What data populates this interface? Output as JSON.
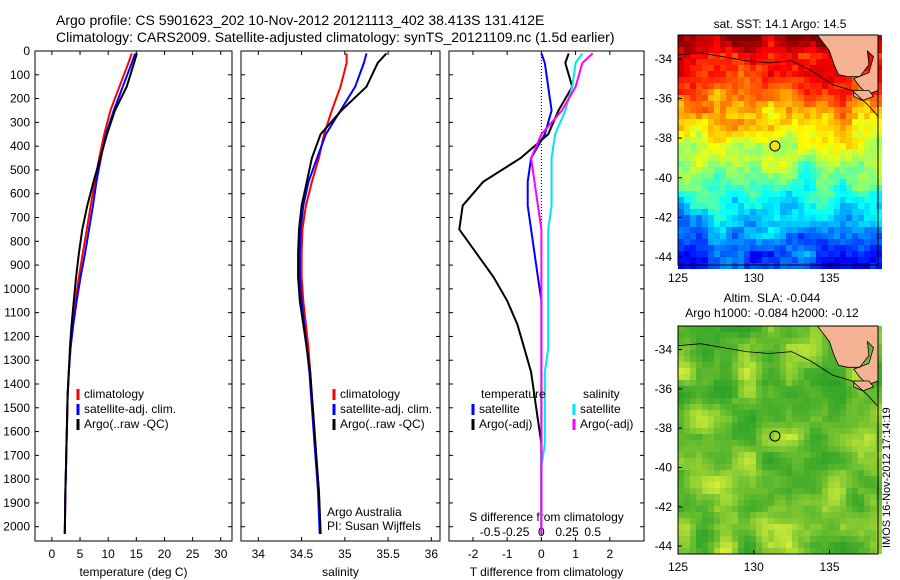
{
  "header": {
    "line1": "Argo profile: CS 5901623_202 10-Nov-2012 20121113_402 38.413S 131.412E",
    "line2": "Climatology: CARS2009. Satellite-adjusted climatology: synTS_20121109.nc (1.5d earlier)"
  },
  "side_stamp": "IMOS 16-Nov-2012 17:14:19",
  "colors": {
    "climatology": "#ff0000",
    "satellite": "#0000ff",
    "argo": "#000000",
    "cyan": "#00e5ee",
    "magenta": "#ff00ff",
    "land": "#f4b293"
  },
  "chart_data": [
    {
      "type": "line",
      "id": "temperature",
      "xlabel": "temperature (deg C)",
      "xlim": [
        -3,
        32
      ],
      "xticks": [
        0,
        5,
        10,
        15,
        20,
        25,
        30
      ],
      "ylim": [
        2060,
        0
      ],
      "yticks": [
        0,
        100,
        200,
        300,
        400,
        500,
        600,
        700,
        800,
        900,
        1000,
        1100,
        1200,
        1300,
        1400,
        1500,
        1600,
        1700,
        1800,
        1900,
        2000
      ],
      "series": [
        {
          "name": "climatology",
          "color": "#ff0000",
          "x": [
            14.2,
            13.6,
            12.0,
            10.4,
            9.3,
            8.4,
            7.6,
            6.9,
            6.2,
            5.5,
            4.8,
            4.2,
            3.7,
            3.3,
            3.0,
            2.8,
            2.7,
            2.6,
            2.5,
            2.4,
            2.3
          ],
          "y": [
            10,
            50,
            150,
            250,
            350,
            450,
            550,
            650,
            750,
            850,
            950,
            1050,
            1150,
            1250,
            1350,
            1450,
            1550,
            1650,
            1750,
            1850,
            2030
          ]
        },
        {
          "name": "satellite-adj. clim.",
          "color": "#0000ff",
          "x": [
            14.8,
            14.2,
            12.6,
            11.0,
            9.6,
            8.7,
            7.9,
            7.3,
            6.6,
            5.9,
            5.1,
            4.4,
            3.8,
            3.3,
            3.0,
            2.8,
            2.7,
            2.6,
            2.5,
            2.4,
            2.3
          ],
          "y": [
            10,
            50,
            150,
            250,
            350,
            450,
            550,
            650,
            750,
            850,
            950,
            1050,
            1150,
            1250,
            1350,
            1450,
            1550,
            1650,
            1750,
            1850,
            2030
          ]
        },
        {
          "name": "Argo(..raw -QC)",
          "color": "#000000",
          "x": [
            15.1,
            14.6,
            13.3,
            11.2,
            9.8,
            8.6,
            7.4,
            6.3,
            5.4,
            4.8,
            4.3,
            3.9,
            3.5,
            3.2,
            3.0,
            2.8,
            2.7,
            2.6,
            2.5,
            2.4,
            2.3
          ],
          "y": [
            10,
            50,
            150,
            250,
            350,
            450,
            550,
            650,
            750,
            850,
            950,
            1050,
            1150,
            1250,
            1350,
            1450,
            1550,
            1650,
            1750,
            1850,
            2030
          ]
        }
      ],
      "legend": [
        "climatology",
        "satellite-adj. clim.",
        "Argo(..raw -QC)"
      ]
    },
    {
      "type": "line",
      "id": "salinity",
      "xlabel": "salinity",
      "xlim": [
        33.8,
        36.1
      ],
      "xticks": [
        34,
        34.5,
        35,
        35.5,
        36
      ],
      "ylim": [
        2060,
        0
      ],
      "series": [
        {
          "name": "climatology",
          "color": "#ff0000",
          "x": [
            35.02,
            35.02,
            34.95,
            34.85,
            34.76,
            34.7,
            34.62,
            34.55,
            34.51,
            34.5,
            34.5,
            34.52,
            34.55,
            34.58,
            34.6,
            34.62,
            34.64,
            34.66,
            34.68,
            34.7,
            34.72
          ],
          "y": [
            10,
            50,
            150,
            250,
            350,
            450,
            550,
            650,
            750,
            850,
            950,
            1050,
            1150,
            1250,
            1350,
            1450,
            1550,
            1650,
            1750,
            1850,
            2030
          ]
        },
        {
          "name": "satellite-adj. clim.",
          "color": "#0000ff",
          "x": [
            35.25,
            35.22,
            35.12,
            34.95,
            34.78,
            34.68,
            34.58,
            34.52,
            34.49,
            34.48,
            34.48,
            34.5,
            34.53,
            34.56,
            34.59,
            34.61,
            34.63,
            34.65,
            34.67,
            34.69,
            34.71
          ],
          "y": [
            10,
            50,
            150,
            250,
            350,
            450,
            550,
            650,
            750,
            850,
            950,
            1050,
            1150,
            1250,
            1350,
            1450,
            1550,
            1650,
            1750,
            1850,
            2030
          ]
        },
        {
          "name": "Argo(..raw -QC)",
          "color": "#000000",
          "x": [
            35.48,
            35.38,
            35.25,
            34.96,
            34.72,
            34.62,
            34.56,
            34.5,
            34.47,
            34.46,
            34.46,
            34.48,
            34.52,
            34.56,
            34.6,
            34.62,
            34.64,
            34.66,
            34.68,
            34.7,
            34.72
          ],
          "y": [
            10,
            50,
            150,
            250,
            350,
            450,
            550,
            650,
            750,
            850,
            950,
            1050,
            1150,
            1250,
            1350,
            1450,
            1550,
            1650,
            1750,
            1850,
            2030
          ]
        }
      ],
      "legend": [
        "climatology",
        "satellite-adj. clim.",
        "Argo(..raw -QC)"
      ],
      "annotation": [
        "Argo Australia",
        "PI: Susan Wijffels"
      ]
    },
    {
      "type": "line",
      "id": "difference",
      "xlabel": "T difference from climatology",
      "xlabel_top": "S difference from climatology",
      "xlim": [
        -2.7,
        3.0
      ],
      "xticks": [
        -2,
        -1,
        0,
        1,
        2
      ],
      "sticks": [
        -0.5,
        -0.25,
        0,
        0.25,
        0.5
      ],
      "ylim": [
        2060,
        0
      ],
      "series": [
        {
          "name": "temperature satellite",
          "color": "#0000ff",
          "x": [
            0.0,
            0.1,
            0.2,
            0.3,
            0.1,
            -0.3,
            -0.4,
            -0.4,
            -0.3,
            -0.2,
            -0.1,
            0.0,
            0.0,
            0.0,
            0.0,
            0.0,
            0.0,
            0.0,
            0.0,
            0.0,
            0.0
          ],
          "y": [
            10,
            50,
            150,
            250,
            350,
            450,
            550,
            650,
            750,
            850,
            950,
            1050,
            1150,
            1250,
            1350,
            1450,
            1550,
            1650,
            1750,
            1850,
            2030
          ]
        },
        {
          "name": "temperature Argo(-adj)",
          "color": "#000000",
          "x": [
            0.8,
            0.7,
            0.9,
            0.5,
            0.2,
            -0.6,
            -1.7,
            -2.3,
            -2.4,
            -1.9,
            -1.4,
            -1.0,
            -0.7,
            -0.5,
            -0.3,
            -0.2,
            -0.1,
            0.0,
            0.0,
            0.0,
            0.0
          ],
          "y": [
            10,
            50,
            150,
            250,
            350,
            450,
            550,
            650,
            750,
            850,
            950,
            1050,
            1150,
            1250,
            1350,
            1450,
            1550,
            1650,
            1750,
            1850,
            2030
          ]
        },
        {
          "name": "salinity satellite",
          "color": "#00e5ee",
          "x": [
            1.2,
            1.0,
            0.9,
            0.7,
            0.4,
            0.3,
            0.3,
            0.3,
            0.2,
            0.2,
            0.2,
            0.2,
            0.2,
            0.2,
            0.1,
            0.1,
            0.1,
            0.1,
            0.0,
            0.0,
            0.0
          ],
          "y": [
            10,
            50,
            150,
            250,
            350,
            450,
            550,
            650,
            750,
            850,
            950,
            1050,
            1150,
            1250,
            1350,
            1450,
            1550,
            1650,
            1750,
            1850,
            2030
          ]
        },
        {
          "name": "salinity Argo(-adj)",
          "color": "#ff00ff",
          "x": [
            1.5,
            1.2,
            1.0,
            0.6,
            0.0,
            -0.3,
            -0.2,
            -0.1,
            0.0,
            0.0,
            0.0,
            0.0,
            0.0,
            0.0,
            0.0,
            0.0,
            0.0,
            0.0,
            0.0,
            0.0,
            0.0
          ],
          "y": [
            10,
            50,
            150,
            250,
            350,
            450,
            550,
            650,
            750,
            850,
            950,
            1050,
            1150,
            1250,
            1350,
            1450,
            1550,
            1650,
            1750,
            1850,
            2030
          ]
        }
      ],
      "legend_cols": [
        {
          "header": "temperature",
          "items": [
            {
              "name": "satellite",
              "color": "#0000ff"
            },
            {
              "name": "Argo(-adj)",
              "color": "#000000"
            }
          ]
        },
        {
          "header": "salinity",
          "items": [
            {
              "name": "satellite",
              "color": "#00e5ee"
            },
            {
              "name": "Argo(-adj)",
              "color": "#ff00ff"
            }
          ]
        }
      ]
    },
    {
      "type": "heatmap",
      "id": "sst_map",
      "title": "sat. SST: 14.1  Argo: 14.5",
      "xlim": [
        125,
        138.2
      ],
      "ylim": [
        -44.4,
        -32.8
      ],
      "xticks": [
        125,
        130,
        135
      ],
      "yticks": [
        -34,
        -36,
        -38,
        -40,
        -42,
        -44
      ],
      "marker": {
        "lon": 131.4,
        "lat": -38.4
      },
      "colormap": "jet"
    },
    {
      "type": "heatmap",
      "id": "sla_map",
      "title": "Altim. SLA: -0.044",
      "subtitle": "Argo h1000: -0.084 h2000: -0.12",
      "xlim": [
        125,
        138.2
      ],
      "ylim": [
        -44.4,
        -32.8
      ],
      "xticks": [
        125,
        130,
        135
      ],
      "yticks": [
        -34,
        -36,
        -38,
        -40,
        -42,
        -44
      ],
      "marker": {
        "lon": 131.4,
        "lat": -38.4
      },
      "colormap": "green"
    }
  ]
}
